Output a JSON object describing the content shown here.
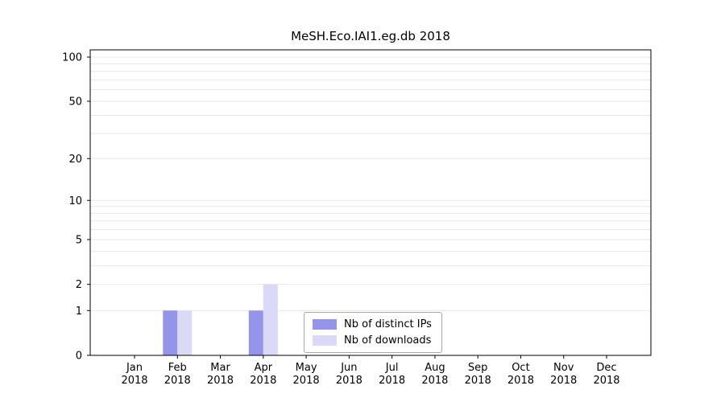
{
  "colors": {
    "grid": "#e7e7e7",
    "axis": "#000000",
    "background": "#ffffff",
    "legend_border": "#a8a8a8"
  },
  "chart_data": {
    "type": "bar",
    "title": "MeSH.Eco.IAI1.eg.db 2018",
    "categories": [
      "Jan",
      "Feb",
      "Mar",
      "Apr",
      "May",
      "Jun",
      "Jul",
      "Aug",
      "Sep",
      "Oct",
      "Nov",
      "Dec"
    ],
    "category_sublabel": "2018",
    "series": [
      {
        "name": "Nb of distinct IPs",
        "color": "#9494ea",
        "values": [
          0,
          1,
          0,
          1,
          0,
          0,
          0,
          0,
          0,
          0,
          0,
          0
        ]
      },
      {
        "name": "Nb of downloads",
        "color": "#dadaf8",
        "values": [
          0,
          1,
          0,
          2,
          0,
          0,
          0,
          0,
          0,
          0,
          0,
          0
        ]
      }
    ],
    "yscale": "log1p",
    "ylim": [
      0,
      112
    ],
    "yticks": [
      0,
      1,
      2,
      5,
      10,
      20,
      50,
      100
    ],
    "minor_gridlines": [
      1,
      2,
      3,
      4,
      5,
      6,
      7,
      8,
      9,
      10,
      20,
      30,
      40,
      50,
      60,
      70,
      80,
      90,
      100
    ],
    "grid": true,
    "legend_position": "lower-center-inside"
  }
}
